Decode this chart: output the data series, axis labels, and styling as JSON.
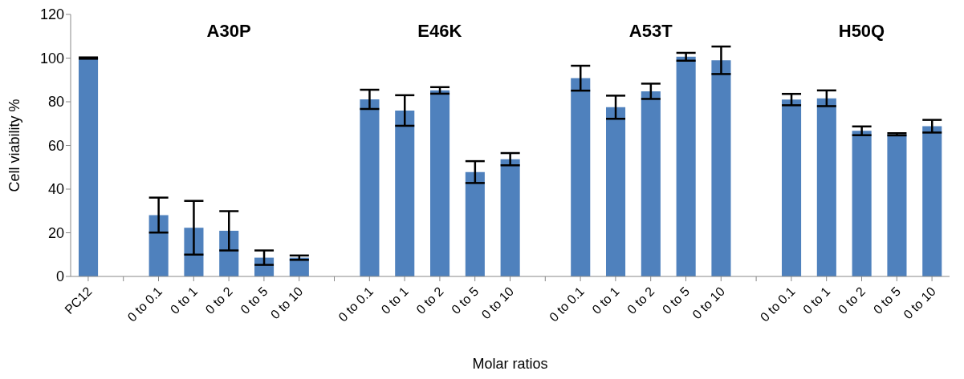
{
  "chart_data": {
    "type": "bar",
    "xlabel": "Molar ratios",
    "ylabel": "Cell viability %",
    "categories": [
      "PC12",
      null,
      "0 to 0.1",
      "0 to 1",
      "0 to 2",
      "0 to 5",
      "0 to 10",
      null,
      "0 to 0.1",
      "0 to 1",
      "0 to 2",
      "0 to 5",
      "0 to 10",
      null,
      "0 to 0.1",
      "0 to 1",
      "0 to 2",
      "0 to 5",
      "0 to 10",
      null,
      "0 to 0.1",
      "0 to 1",
      "0 to 2",
      "0 to 5",
      "0 to 10"
    ],
    "values": [
      100,
      null,
      28.1,
      22.3,
      20.9,
      8.6,
      8.6,
      null,
      81.1,
      76,
      85.2,
      47.8,
      53.7,
      null,
      90.8,
      77.5,
      84.8,
      100.6,
      99,
      null,
      81,
      81.6,
      66.7,
      65.1,
      68.8
    ],
    "errors": [
      0.3,
      null,
      8,
      12.3,
      9,
      3.3,
      1,
      null,
      4.4,
      7,
      1.5,
      5,
      2.8,
      null,
      5.7,
      5.3,
      3.5,
      1.8,
      6.3,
      null,
      2.6,
      3.6,
      2,
      0.5,
      2.9
    ],
    "color": "#4f81bd",
    "annotations": [
      "A30P",
      "E46K",
      "A53T",
      "H50Q"
    ],
    "ylim": [
      0,
      120
    ],
    "yticks": [
      0,
      20,
      40,
      60,
      80,
      100,
      120
    ],
    "grid": false,
    "legend": false
  }
}
